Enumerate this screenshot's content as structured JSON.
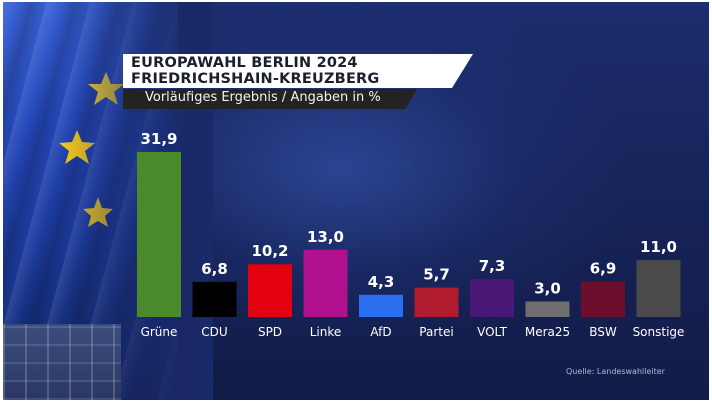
{
  "header": {
    "title_line1": "EUROPAWAHL BERLIN 2024",
    "title_line2": "FRIEDRICHSHAIN-KREUZBERG",
    "subtitle": "Vorläufiges Ergebnis / Angaben in %"
  },
  "source": "Quelle: Landeswahlleiter",
  "chart_data": {
    "type": "bar",
    "title": "EUROPAWAHL BERLIN 2024 FRIEDRICHSHAIN-KREUZBERG",
    "subtitle": "Vorläufiges Ergebnis / Angaben in %",
    "categories": [
      "Grüne",
      "CDU",
      "SPD",
      "Linke",
      "AfD",
      "Partei",
      "VOLT",
      "Mera25",
      "BSW",
      "Sonstige"
    ],
    "values": [
      31.9,
      6.8,
      10.2,
      13.0,
      4.3,
      5.7,
      7.3,
      3.0,
      6.9,
      11.0
    ],
    "value_labels": [
      "31,9",
      "6,8",
      "10,2",
      "13,0",
      "4,3",
      "5,7",
      "7,3",
      "3,0",
      "6,9",
      "11,0"
    ],
    "colors": [
      "#4b8a2a",
      "#000000",
      "#e3000f",
      "#b1108e",
      "#2a6ff0",
      "#b01b2e",
      "#4a1977",
      "#6f6f6f",
      "#6b0f2d",
      "#4a4a4a"
    ],
    "ylim": [
      0,
      31.9
    ],
    "grid": false,
    "legend": "none"
  }
}
